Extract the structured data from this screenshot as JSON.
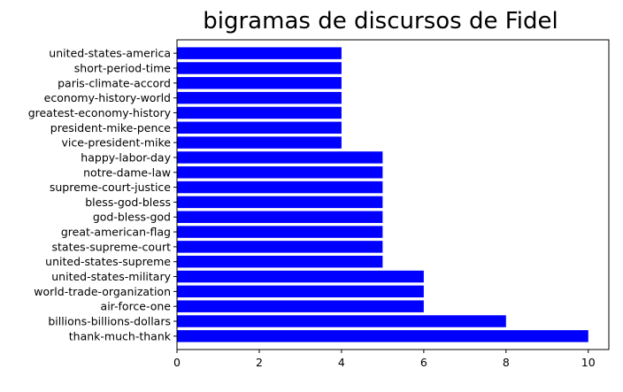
{
  "chart_data": {
    "type": "bar",
    "orientation": "horizontal",
    "title": "bigramas de discursos de Fidel",
    "xlabel": "",
    "ylabel": "",
    "categories": [
      "thank-much-thank",
      "billions-billions-dollars",
      "air-force-one",
      "world-trade-organization",
      "united-states-military",
      "united-states-supreme",
      "states-supreme-court",
      "great-american-flag",
      "god-bless-god",
      "bless-god-bless",
      "supreme-court-justice",
      "notre-dame-law",
      "happy-labor-day",
      "vice-president-mike",
      "president-mike-pence",
      "greatest-economy-history",
      "economy-history-world",
      "paris-climate-accord",
      "short-period-time",
      "united-states-america"
    ],
    "values": [
      10,
      8,
      6,
      6,
      6,
      5,
      5,
      5,
      5,
      5,
      5,
      5,
      5,
      4,
      4,
      4,
      4,
      4,
      4,
      4
    ],
    "xlim": [
      0,
      10.5
    ],
    "xticks": [
      0,
      2,
      4,
      6,
      8,
      10
    ],
    "bar_color": "#0000ff",
    "grid": false
  }
}
